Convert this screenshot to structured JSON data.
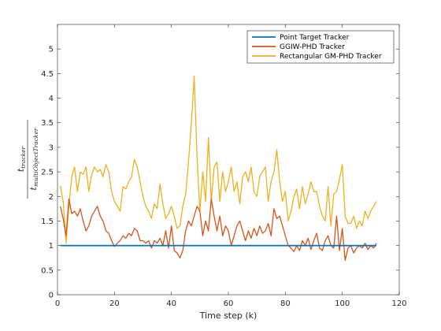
{
  "chart_data": {
    "type": "line",
    "title": "",
    "xlabel": "Time step (k)",
    "ylabel": {
      "numerator": "t",
      "numerator_sub": "tracker",
      "denominator": "t",
      "denominator_sub": "multiObjectTracker"
    },
    "xlim": [
      0,
      120
    ],
    "ylim": [
      0,
      5.5
    ],
    "xticks": [
      0,
      20,
      40,
      60,
      80,
      100,
      120
    ],
    "yticks": [
      0,
      0.5,
      1,
      1.5,
      2,
      2.5,
      3,
      3.5,
      4,
      4.5,
      5
    ],
    "grid": false,
    "legend_position": "top-right",
    "series": [
      {
        "name": "Point Target Tracker",
        "color": "#0072BD",
        "x": [
          1,
          112
        ],
        "y": [
          1.0,
          1.0
        ]
      },
      {
        "name": "GGIW-PHD Tracker",
        "color": "#D95319",
        "x": [
          1,
          2,
          3,
          4,
          5,
          6,
          7,
          8,
          9,
          10,
          11,
          12,
          13,
          14,
          15,
          16,
          17,
          18,
          19,
          20,
          21,
          22,
          23,
          24,
          25,
          26,
          27,
          28,
          29,
          30,
          31,
          32,
          33,
          34,
          35,
          36,
          37,
          38,
          39,
          40,
          41,
          42,
          43,
          44,
          45,
          46,
          47,
          48,
          49,
          50,
          51,
          52,
          53,
          54,
          55,
          56,
          57,
          58,
          59,
          60,
          61,
          62,
          63,
          64,
          65,
          66,
          67,
          68,
          69,
          70,
          71,
          72,
          73,
          74,
          75,
          76,
          77,
          78,
          79,
          80,
          81,
          82,
          83,
          84,
          85,
          86,
          87,
          88,
          89,
          90,
          91,
          92,
          93,
          94,
          95,
          96,
          97,
          98,
          99,
          100,
          101,
          102,
          103,
          104,
          105,
          106,
          107,
          108,
          109,
          110,
          111,
          112
        ],
        "y": [
          1.8,
          1.55,
          1.2,
          1.95,
          1.65,
          1.7,
          1.6,
          1.75,
          1.5,
          1.3,
          1.4,
          1.6,
          1.7,
          1.8,
          1.6,
          1.5,
          1.3,
          1.25,
          1.1,
          0.98,
          1.05,
          1.1,
          1.2,
          1.15,
          1.25,
          1.2,
          1.35,
          1.3,
          1.1,
          1.1,
          1.05,
          1.1,
          0.95,
          1.1,
          1.05,
          1.15,
          1.0,
          1.3,
          0.95,
          1.4,
          0.9,
          0.85,
          0.75,
          0.9,
          1.3,
          1.5,
          1.4,
          1.6,
          1.8,
          1.7,
          1.2,
          1.5,
          1.3,
          1.95,
          1.6,
          1.3,
          1.6,
          1.2,
          1.4,
          1.3,
          1.0,
          1.2,
          1.4,
          1.5,
          1.3,
          1.1,
          1.3,
          1.15,
          1.35,
          1.2,
          1.4,
          1.25,
          1.3,
          1.45,
          1.2,
          1.75,
          1.55,
          1.6,
          1.4,
          1.2,
          1.0,
          0.95,
          0.88,
          1.0,
          0.9,
          1.1,
          1.0,
          1.15,
          0.92,
          1.1,
          1.25,
          0.95,
          0.9,
          1.1,
          1.2,
          1.0,
          0.95,
          1.6,
          0.9,
          1.35,
          0.7,
          0.95,
          1.0,
          0.85,
          0.95,
          1.0,
          0.95,
          1.05,
          0.92,
          1.0,
          0.95,
          1.05
        ]
      },
      {
        "name": "Rectangular GM-PHD Tracker",
        "color": "#EDB120",
        "x": [
          1,
          2,
          3,
          4,
          5,
          6,
          7,
          8,
          9,
          10,
          11,
          12,
          13,
          14,
          15,
          16,
          17,
          18,
          19,
          20,
          21,
          22,
          23,
          24,
          25,
          26,
          27,
          28,
          29,
          30,
          31,
          32,
          33,
          34,
          35,
          36,
          37,
          38,
          39,
          40,
          41,
          42,
          43,
          44,
          45,
          46,
          47,
          48,
          49,
          50,
          51,
          52,
          53,
          54,
          55,
          56,
          57,
          58,
          59,
          60,
          61,
          62,
          63,
          64,
          65,
          66,
          67,
          68,
          69,
          70,
          71,
          72,
          73,
          74,
          75,
          76,
          77,
          78,
          79,
          80,
          81,
          82,
          83,
          84,
          85,
          86,
          87,
          88,
          89,
          90,
          91,
          92,
          93,
          94,
          95,
          96,
          97,
          98,
          99,
          100,
          101,
          102,
          103,
          104,
          105,
          106,
          107,
          108,
          109,
          110,
          111,
          112
        ],
        "y": [
          2.22,
          1.9,
          1.05,
          1.8,
          2.4,
          2.6,
          2.1,
          2.5,
          2.45,
          2.6,
          2.1,
          2.45,
          2.6,
          2.5,
          2.55,
          2.4,
          2.65,
          2.5,
          2.1,
          1.9,
          1.8,
          1.7,
          2.2,
          2.15,
          2.3,
          2.4,
          2.75,
          2.6,
          2.3,
          2.0,
          1.8,
          1.7,
          1.55,
          1.85,
          1.75,
          2.25,
          1.85,
          1.55,
          1.65,
          1.8,
          1.6,
          1.35,
          1.4,
          1.8,
          2.05,
          2.7,
          3.5,
          4.45,
          2.8,
          1.7,
          2.5,
          1.9,
          3.2,
          1.9,
          2.6,
          2.7,
          1.9,
          2.5,
          2.1,
          2.3,
          2.6,
          2.1,
          2.3,
          1.85,
          2.4,
          2.5,
          2.3,
          2.6,
          2.1,
          2.0,
          2.4,
          2.5,
          2.6,
          1.9,
          2.3,
          2.5,
          2.95,
          2.3,
          1.9,
          2.1,
          1.5,
          1.7,
          2.0,
          2.15,
          1.75,
          2.2,
          1.85,
          2.05,
          2.3,
          2.1,
          2.1,
          1.8,
          1.6,
          1.5,
          2.2,
          1.4,
          2.05,
          2.1,
          2.35,
          2.65,
          1.6,
          1.45,
          1.45,
          1.6,
          1.35,
          1.5,
          1.4,
          1.7,
          1.55,
          1.7,
          1.8,
          1.9
        ]
      }
    ]
  }
}
